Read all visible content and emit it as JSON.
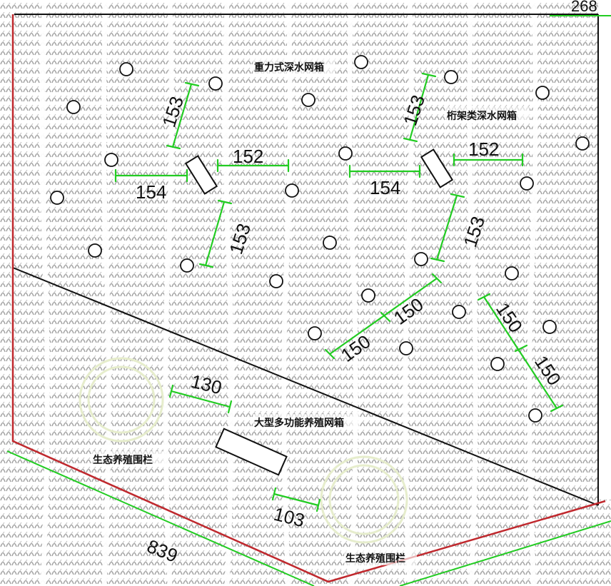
{
  "labels": {
    "gravity_cage": "重力式深水网箱",
    "truss_cage": "桁架类深水网箱",
    "large_multi_cage": "大型多功能养殖网箱",
    "eco_fence_1": "生态养殖围栏",
    "eco_fence_2": "生态养殖围栏"
  },
  "dimensions": {
    "d153a": "153",
    "d152a": "152",
    "d154a": "154",
    "d153b": "153",
    "d153c": "153",
    "d154b": "154",
    "d152b": "152",
    "d153d": "153",
    "d150a": "150",
    "d150b": "150",
    "d150c": "150",
    "d150d": "150",
    "d130": "130",
    "d103": "103",
    "d839": "839",
    "d_topright": "268"
  },
  "colors": {
    "dimension": "#22cc22",
    "boundary": "#c0282d",
    "outline": "#111111",
    "seaweed": "#9a9a9a",
    "fence": "#e8eed2"
  }
}
